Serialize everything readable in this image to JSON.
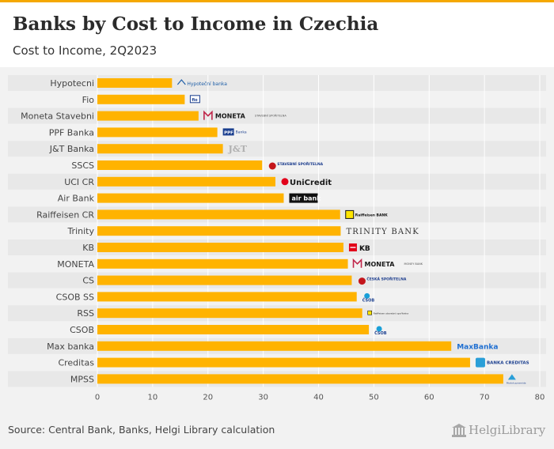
{
  "header": {
    "title": "Banks by Cost to Income in Czechia",
    "subtitle": "Cost to Income, 2Q2023"
  },
  "footer": {
    "source": "Source: Central Bank, Banks, Helgi Library calculation",
    "brand": "HelgiLibrary"
  },
  "colors": {
    "bar": "#ffb300",
    "accent_top": "#f5a800",
    "band": "#e8e8e8"
  },
  "chart_data": {
    "type": "bar",
    "orientation": "horizontal",
    "categories": [
      "Hypotecni",
      "Fio",
      "Moneta Stavebni",
      "PPF Banka",
      "J&T Banka",
      "SSCS",
      "UCI CR",
      "Air Bank",
      "Raiffeisen CR",
      "Trinity",
      "KB",
      "MONETA",
      "CS",
      "CSOB SS",
      "RSS",
      "CSOB",
      "Max banka",
      "Creditas",
      "MPSS"
    ],
    "values": [
      13.5,
      15.8,
      18.3,
      21.7,
      22.7,
      29.8,
      32.2,
      33.7,
      43.9,
      44.0,
      44.5,
      45.3,
      46.0,
      46.9,
      47.9,
      49.1,
      64.0,
      67.4,
      73.4
    ],
    "xlim": [
      0,
      80
    ],
    "xticks": [
      0,
      10,
      20,
      30,
      40,
      50,
      60,
      70,
      80
    ],
    "grid": true,
    "logos": [
      {
        "text": "Hypoteční banka",
        "icon": "house-logo-icon"
      },
      {
        "text": "",
        "icon": "fio-logo-icon"
      },
      {
        "text": "MONETA",
        "small": "STAVEBNÍ SPOŘITELNA",
        "icon": "moneta-logo-icon"
      },
      {
        "text": "PPF",
        "small": "Banka",
        "icon": "ppf-logo-icon"
      },
      {
        "text": "J&T",
        "icon": "jt-logo-icon"
      },
      {
        "text": "STAVEBNÍ SPOŘITELNA",
        "icon": "ceska-logo-icon"
      },
      {
        "text": "UniCredit",
        "icon": "unicredit-logo-icon"
      },
      {
        "text": "air bank",
        "icon": "airbank-logo-icon"
      },
      {
        "text": "Raiffeisen BANK",
        "icon": "raiffeisen-logo-icon"
      },
      {
        "text": "TRINITY BANK",
        "icon": "trinity-logo-icon"
      },
      {
        "text": "KB",
        "icon": "kb-logo-icon"
      },
      {
        "text": "MONETA",
        "small": "MONEY BANK",
        "icon": "moneta-logo-icon"
      },
      {
        "text": "ČESKÁ SPOŘITELNA",
        "icon": "ceska-logo-icon"
      },
      {
        "text": "ČSOB",
        "icon": "csob-logo-icon"
      },
      {
        "text": "Raiffeisen stavební spořitelna",
        "icon": "rss-logo-icon"
      },
      {
        "text": "ČSOB",
        "icon": "csob-logo-icon"
      },
      {
        "text": "MaxBanka",
        "icon": "maxbanka-logo-icon"
      },
      {
        "text": "BANKA CREDITAS",
        "icon": "creditas-logo-icon"
      },
      {
        "text": "Modrá pyramida",
        "icon": "pyramid-logo-icon"
      }
    ]
  }
}
